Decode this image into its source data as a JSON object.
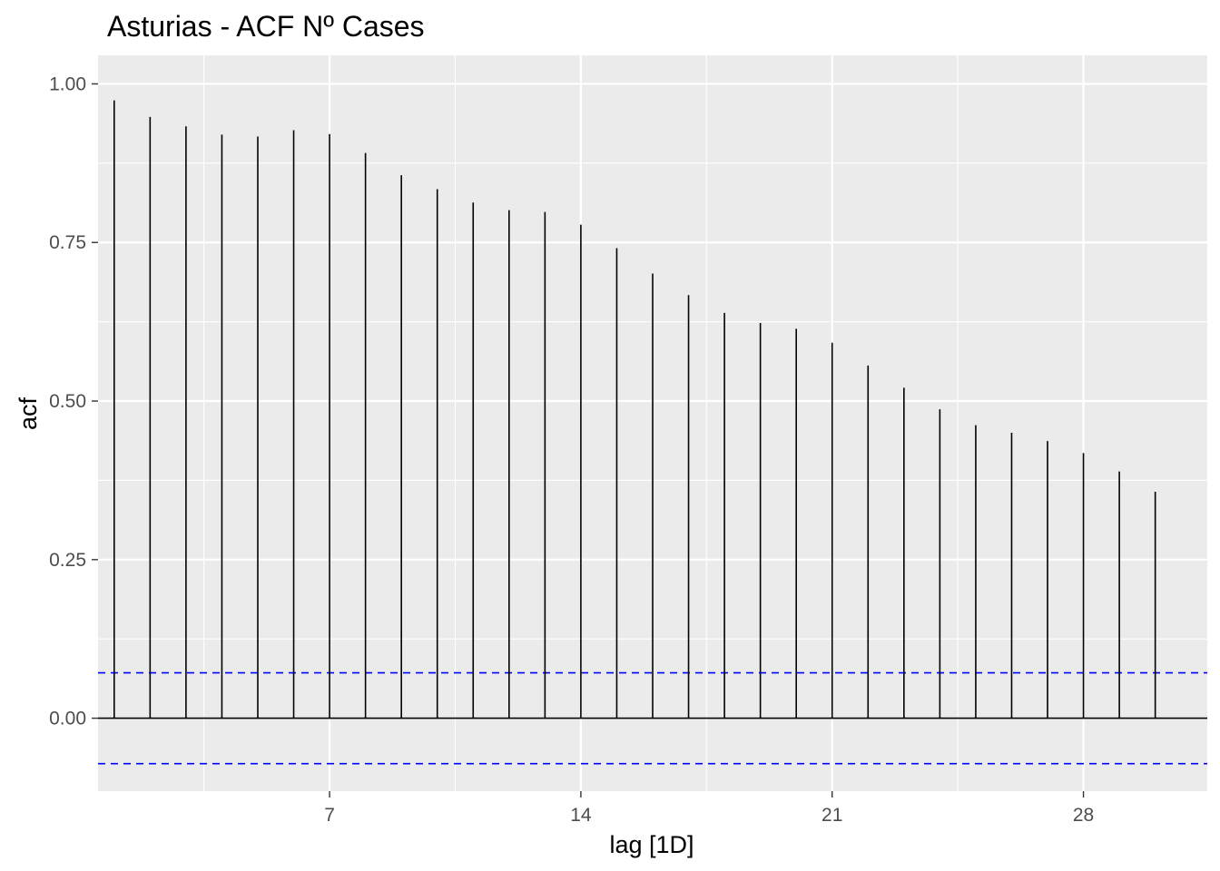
{
  "chart_data": {
    "type": "bar",
    "title": "Asturias - ACF Nº Cases",
    "xlabel": "lag [1D]",
    "ylabel": "acf",
    "xlim": [
      0.55,
      31.45
    ],
    "ylim": [
      -0.115,
      1.045
    ],
    "xticks": [
      7,
      14,
      21,
      28
    ],
    "yticks": [
      0.0,
      0.25,
      0.5,
      0.75,
      1.0
    ],
    "ytick_labels": [
      "0.00",
      "0.25",
      "0.50",
      "0.75",
      "1.00"
    ],
    "lags": [
      1,
      2,
      3,
      4,
      5,
      6,
      7,
      8,
      9,
      10,
      11,
      12,
      13,
      14,
      15,
      16,
      17,
      18,
      19,
      20,
      21,
      22,
      23,
      24,
      25,
      26,
      27,
      28,
      29,
      30
    ],
    "values": [
      0.974,
      0.948,
      0.933,
      0.92,
      0.917,
      0.927,
      0.921,
      0.891,
      0.856,
      0.834,
      0.813,
      0.801,
      0.798,
      0.778,
      0.741,
      0.701,
      0.667,
      0.639,
      0.623,
      0.614,
      0.592,
      0.556,
      0.521,
      0.487,
      0.462,
      0.45,
      0.437,
      0.418,
      0.389,
      0.357
    ],
    "confidence_bounds": [
      0.0716,
      -0.0716
    ],
    "colors": {
      "panel": "#ebebeb",
      "grid": "#ffffff",
      "bars": "#000000",
      "bounds": "#0000ff"
    },
    "grid": true
  }
}
